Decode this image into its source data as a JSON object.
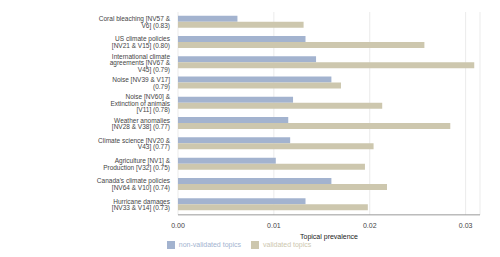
{
  "chart_data": {
    "type": "bar",
    "orientation": "horizontal",
    "grid": true,
    "legend": "bottom",
    "x_label": "Topical prevalence",
    "categories": [
      "Coral bleaching [NV57 & V6] (0.83)",
      "US climate policies [NV21 & V15] (0.80)",
      "International climate agreements [NV67 & V45] (0.79)",
      "Noise [NV39 & V17] (0.79)",
      "Noise [NV60] & Extinction of animals [V11] (0.78)",
      "Weather anomalies [NV28 & V38] (0.77)",
      "Climate science [NV20 & V43] (0.77)",
      "Agriculture [NV1] & Production [V32] (0.75)",
      "Canada's climate policies [NV64 & V10] (0.74)",
      "Hurricane damages [NV33 & V14] (0.73)"
    ],
    "series": [
      {
        "name": "non-validated topics",
        "color": "#a3b3cf",
        "values": [
          0.0062,
          0.0133,
          0.0144,
          0.016,
          0.012,
          0.0115,
          0.0117,
          0.0102,
          0.016,
          0.0133
        ]
      },
      {
        "name": "validated topics",
        "color": "#cdc7ae",
        "values": [
          0.0131,
          0.0257,
          0.0309,
          0.017,
          0.0213,
          0.0284,
          0.0204,
          0.0195,
          0.0218,
          0.0198
        ]
      }
    ],
    "xlim": [
      0,
      0.0315
    ],
    "xticks": [
      {
        "value": 0,
        "label": "0.00"
      },
      0.01,
      0.02,
      0.03
    ]
  }
}
